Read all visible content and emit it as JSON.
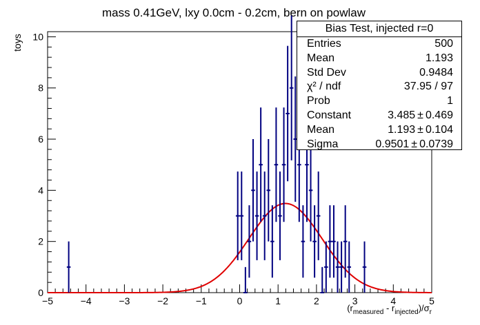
{
  "chart_data": {
    "type": "histogram",
    "title": "mass 0.41GeV, lxy 0.0cm - 0.2cm, bern on powlaw",
    "ylabel": "toys",
    "xlabel": "(r_measured - r_injected)/σ_r",
    "xlabel_parts": {
      "open": "(r",
      "sub1": "measured",
      "mid": " - r",
      "sub2": "injected",
      "close": ")/σ",
      "sub3": "r"
    },
    "xlim": [
      -5,
      5
    ],
    "ylim": [
      0,
      10.2
    ],
    "x_ticks": [
      -5,
      -4,
      -3,
      -2,
      -1,
      0,
      1,
      2,
      3,
      4,
      5
    ],
    "y_ticks": [
      0,
      2,
      4,
      6,
      8,
      10
    ],
    "bin_width": 0.1,
    "bins": [
      {
        "x": -4.45,
        "y": 1
      },
      {
        "x": -0.05,
        "y": 3
      },
      {
        "x": 0.05,
        "y": 3
      },
      {
        "x": 0.15,
        "y": 0
      },
      {
        "x": 0.25,
        "y": 2
      },
      {
        "x": 0.35,
        "y": 4
      },
      {
        "x": 0.45,
        "y": 3
      },
      {
        "x": 0.55,
        "y": 5
      },
      {
        "x": 0.65,
        "y": 3
      },
      {
        "x": 0.75,
        "y": 4
      },
      {
        "x": 0.85,
        "y": 2
      },
      {
        "x": 0.95,
        "y": 5
      },
      {
        "x": 1.05,
        "y": 3
      },
      {
        "x": 1.15,
        "y": 5
      },
      {
        "x": 1.25,
        "y": 7
      },
      {
        "x": 1.35,
        "y": 8
      },
      {
        "x": 1.45,
        "y": 6
      },
      {
        "x": 1.55,
        "y": 5
      },
      {
        "x": 1.65,
        "y": 2
      },
      {
        "x": 1.75,
        "y": 5
      },
      {
        "x": 1.85,
        "y": 4
      },
      {
        "x": 1.95,
        "y": 2
      },
      {
        "x": 2.05,
        "y": 3
      },
      {
        "x": 2.15,
        "y": 0
      },
      {
        "x": 2.25,
        "y": 1
      },
      {
        "x": 2.35,
        "y": 2
      },
      {
        "x": 2.45,
        "y": 2
      },
      {
        "x": 2.55,
        "y": 1
      },
      {
        "x": 2.65,
        "y": 1
      },
      {
        "x": 2.75,
        "y": 2
      },
      {
        "x": 2.85,
        "y": 1
      },
      {
        "x": 3.25,
        "y": 1
      }
    ],
    "fit": {
      "function": "gaus",
      "constant": 3.485,
      "mean": 1.193,
      "sigma": 0.9501
    },
    "colors": {
      "points": "#000080",
      "fit": "#e00000",
      "axis": "#000000"
    },
    "stats_box": {
      "title": "Bias Test, injected r=0",
      "rows": [
        {
          "label": "Entries",
          "value": "500"
        },
        {
          "label": "Mean",
          "value": "1.193"
        },
        {
          "label": "Std Dev",
          "value": "0.9484"
        },
        {
          "label": "χ² / ndf",
          "value": "37.95 / 97"
        },
        {
          "label": "Prob",
          "value": "1"
        },
        {
          "label": "Constant",
          "value": "3.485",
          "error": "0.469"
        },
        {
          "label": "Mean",
          "value": "1.193",
          "error": "0.104"
        },
        {
          "label": "Sigma",
          "value": "0.9501",
          "error": "0.0739"
        }
      ],
      "pm_symbol": "±",
      "legend_position": "top-right"
    }
  }
}
